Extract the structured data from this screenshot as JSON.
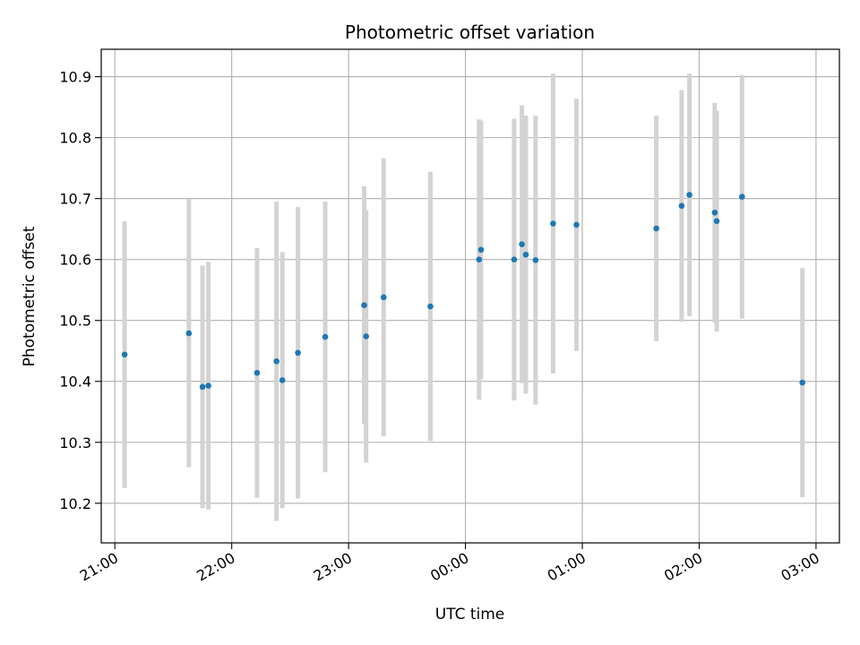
{
  "chart_data": {
    "type": "scatter",
    "title": "Photometric offset variation",
    "xlabel": "UTC time",
    "ylabel": "Photometric offset",
    "x_axis": {
      "type": "time",
      "range": [
        "20:53",
        "03:12"
      ],
      "ticks": [
        "21:00",
        "22:00",
        "23:00",
        "00:00",
        "01:00",
        "02:00",
        "03:00"
      ],
      "tick_label_rotation_deg": 30
    },
    "y_axis": {
      "range": [
        10.135,
        10.945
      ],
      "ticks": [
        "10.2",
        "10.3",
        "10.4",
        "10.5",
        "10.6",
        "10.7",
        "10.8",
        "10.9"
      ]
    },
    "grid": true,
    "colors": {
      "points": "#1f77b4",
      "errorbars": "#d3d3d3",
      "grid": "#b0b0b0"
    },
    "points": [
      {
        "time": "21:05",
        "y": 10.444,
        "yerr": 0.219
      },
      {
        "time": "21:38",
        "y": 10.479,
        "yerr": 0.22
      },
      {
        "time": "21:45",
        "y": 10.391,
        "yerr": 0.199
      },
      {
        "time": "21:48",
        "y": 10.393,
        "yerr": 0.203
      },
      {
        "time": "22:13",
        "y": 10.414,
        "yerr": 0.205
      },
      {
        "time": "22:23",
        "y": 10.433,
        "yerr": 0.262
      },
      {
        "time": "22:26",
        "y": 10.402,
        "yerr": 0.21
      },
      {
        "time": "22:34",
        "y": 10.447,
        "yerr": 0.239
      },
      {
        "time": "22:48",
        "y": 10.473,
        "yerr": 0.222
      },
      {
        "time": "23:08",
        "y": 10.525,
        "yerr": 0.195
      },
      {
        "time": "23:09",
        "y": 10.474,
        "yerr": 0.207
      },
      {
        "time": "23:18",
        "y": 10.538,
        "yerr": 0.228
      },
      {
        "time": "23:42",
        "y": 10.523,
        "yerr": 0.221
      },
      {
        "time": "00:07",
        "y": 10.6,
        "yerr": 0.23
      },
      {
        "time": "00:08",
        "y": 10.616,
        "yerr": 0.212
      },
      {
        "time": "00:25",
        "y": 10.6,
        "yerr": 0.231
      },
      {
        "time": "00:29",
        "y": 10.625,
        "yerr": 0.228
      },
      {
        "time": "00:31",
        "y": 10.608,
        "yerr": 0.228
      },
      {
        "time": "00:36",
        "y": 10.599,
        "yerr": 0.237
      },
      {
        "time": "00:45",
        "y": 10.659,
        "yerr": 0.246
      },
      {
        "time": "00:57",
        "y": 10.657,
        "yerr": 0.207
      },
      {
        "time": "01:38",
        "y": 10.651,
        "yerr": 0.185
      },
      {
        "time": "01:51",
        "y": 10.688,
        "yerr": 0.19
      },
      {
        "time": "01:55",
        "y": 10.706,
        "yerr": 0.199
      },
      {
        "time": "02:08",
        "y": 10.677,
        "yerr": 0.18
      },
      {
        "time": "02:09",
        "y": 10.663,
        "yerr": 0.181
      },
      {
        "time": "02:22",
        "y": 10.703,
        "yerr": 0.2
      },
      {
        "time": "02:53",
        "y": 10.398,
        "yerr": 0.188
      }
    ]
  }
}
